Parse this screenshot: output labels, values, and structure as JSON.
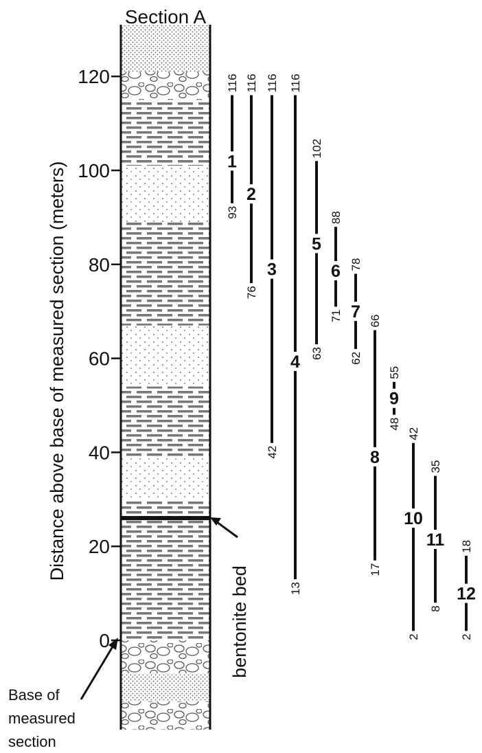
{
  "title": "Section A",
  "ylabel": "Distance above base of measured section (meters)",
  "chart_data": {
    "type": "range-chart",
    "y_ticks": [
      0,
      20,
      40,
      60,
      80,
      100,
      120
    ],
    "ylim": [
      -19,
      131
    ],
    "ranges": [
      {
        "id": "1",
        "top": 116,
        "bottom": 93
      },
      {
        "id": "2",
        "top": 116,
        "bottom": 76
      },
      {
        "id": "3",
        "top": 116,
        "bottom": 42
      },
      {
        "id": "4",
        "top": 116,
        "bottom": 13
      },
      {
        "id": "5",
        "top": 102,
        "bottom": 63
      },
      {
        "id": "6",
        "top": 88,
        "bottom": 71
      },
      {
        "id": "7",
        "top": 78,
        "bottom": 62
      },
      {
        "id": "8",
        "top": 66,
        "bottom": 17
      },
      {
        "id": "9",
        "top": 55,
        "bottom": 48
      },
      {
        "id": "10",
        "top": 42,
        "bottom": 2
      },
      {
        "id": "11",
        "top": 35,
        "bottom": 8
      },
      {
        "id": "12",
        "top": 18,
        "bottom": 2
      }
    ],
    "bentonite_level": 26
  },
  "annotations": {
    "bentonite": "bentonite bed",
    "base": [
      "Base of",
      "measured",
      "section"
    ]
  }
}
